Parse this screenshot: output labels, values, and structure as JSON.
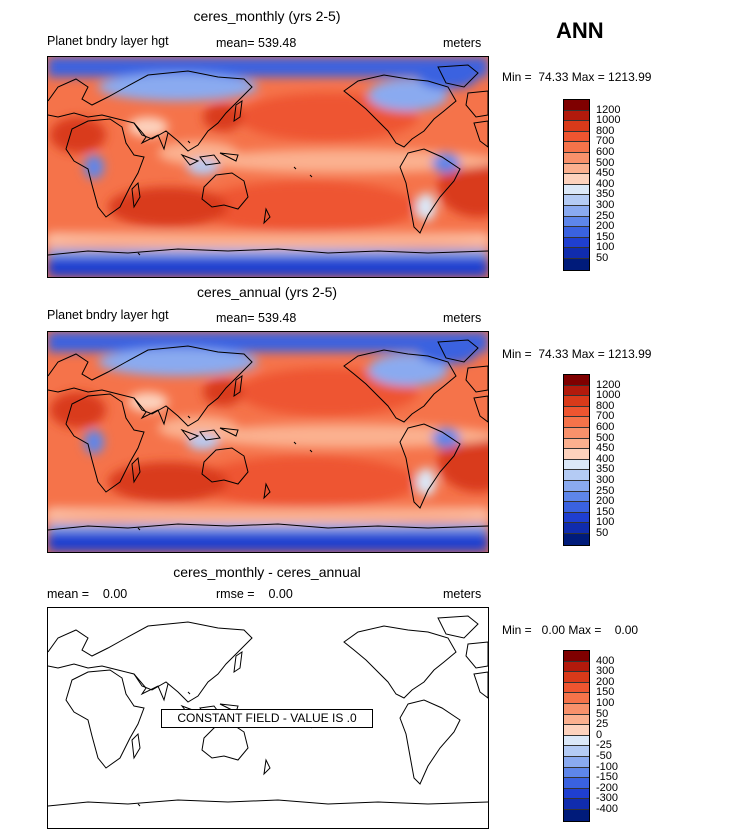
{
  "season": "ANN",
  "panels": [
    {
      "title": "ceres_monthly (yrs 2-5)",
      "left_label": "Planet bndry layer hgt",
      "mean_label": "mean= 539.48",
      "units": "meters",
      "minmax": "Min =  74.33 Max = 1213.99",
      "field": "monthly"
    },
    {
      "title": "ceres_annual (yrs 2-5)",
      "left_label": "Planet bndry layer hgt",
      "mean_label": "mean= 539.48",
      "units": "meters",
      "minmax": "Min =  74.33 Max = 1213.99",
      "field": "annual"
    },
    {
      "title": "ceres_monthly - ceres_annual",
      "left_label": "mean =    0.00",
      "mean_label": "rmse =    0.00",
      "units": "meters",
      "minmax": "Min =   0.00 Max =    0.00",
      "field": "difference",
      "constant_text": "CONSTANT FIELD - VALUE IS .0"
    }
  ],
  "colorbar_fields": {
    "levels": [
      "1200",
      "1000",
      "800",
      "700",
      "600",
      "500",
      "450",
      "400",
      "350",
      "300",
      "250",
      "200",
      "150",
      "100",
      "50"
    ],
    "colors": [
      "#7f0000",
      "#b21a0c",
      "#d93a1a",
      "#ee5530",
      "#f5734a",
      "#f8916b",
      "#fbb08f",
      "#fdd2bd",
      "#dbe8f8",
      "#b4cbf4",
      "#8aaaf0",
      "#5e86ea",
      "#3a62e0",
      "#1f3fd0",
      "#102cae",
      "#001b7a"
    ]
  },
  "colorbar_diff": {
    "levels": [
      "400",
      "300",
      "200",
      "150",
      "100",
      "50",
      "25",
      "0",
      "-25",
      "-50",
      "-100",
      "-150",
      "-200",
      "-300",
      "-400"
    ],
    "colors": [
      "#7f0000",
      "#b21a0c",
      "#d93a1a",
      "#ee5530",
      "#f5734a",
      "#f8916b",
      "#fbb08f",
      "#fdd2bd",
      "#dbe8f8",
      "#b4cbf4",
      "#8aaaf0",
      "#5e86ea",
      "#3a62e0",
      "#1f3fd0",
      "#102cae",
      "#001b7a"
    ]
  }
}
